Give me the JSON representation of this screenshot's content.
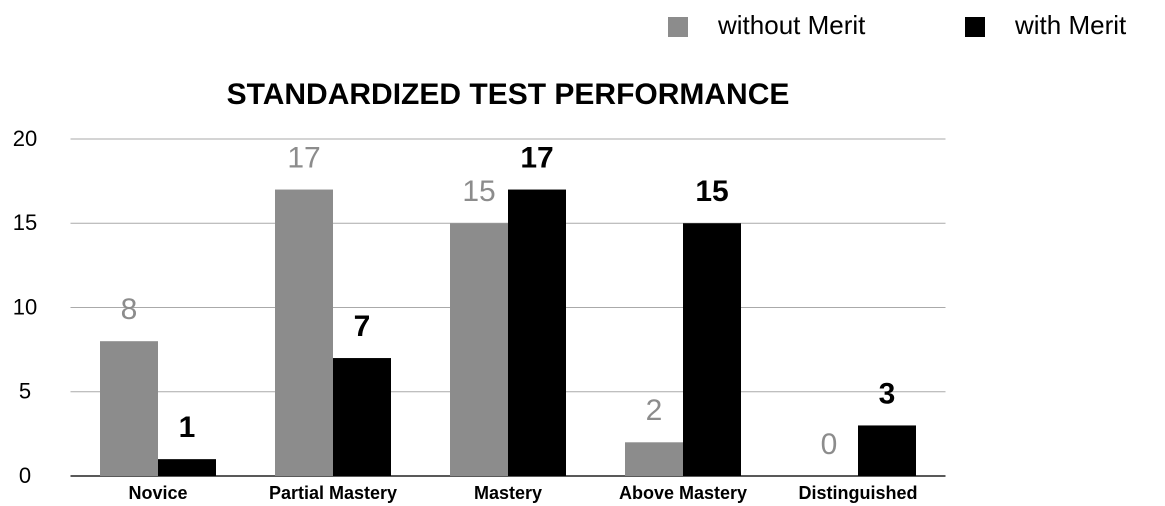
{
  "chart_data": {
    "type": "bar",
    "title": "STANDARDIZED TEST PERFORMANCE",
    "categories": [
      "Novice",
      "Partial Mastery",
      "Mastery",
      "Above Mastery",
      "Distinguished"
    ],
    "series": [
      {
        "name": "without Merit",
        "color": "#8c8c8c",
        "values": [
          8,
          17,
          15,
          2,
          0
        ]
      },
      {
        "name": "with Merit",
        "color": "#000000",
        "values": [
          1,
          7,
          17,
          15,
          3
        ]
      }
    ],
    "ylim": [
      0,
      20
    ],
    "yticks": [
      0,
      5,
      10,
      15,
      20
    ],
    "grid": true,
    "legend": "top-right"
  }
}
